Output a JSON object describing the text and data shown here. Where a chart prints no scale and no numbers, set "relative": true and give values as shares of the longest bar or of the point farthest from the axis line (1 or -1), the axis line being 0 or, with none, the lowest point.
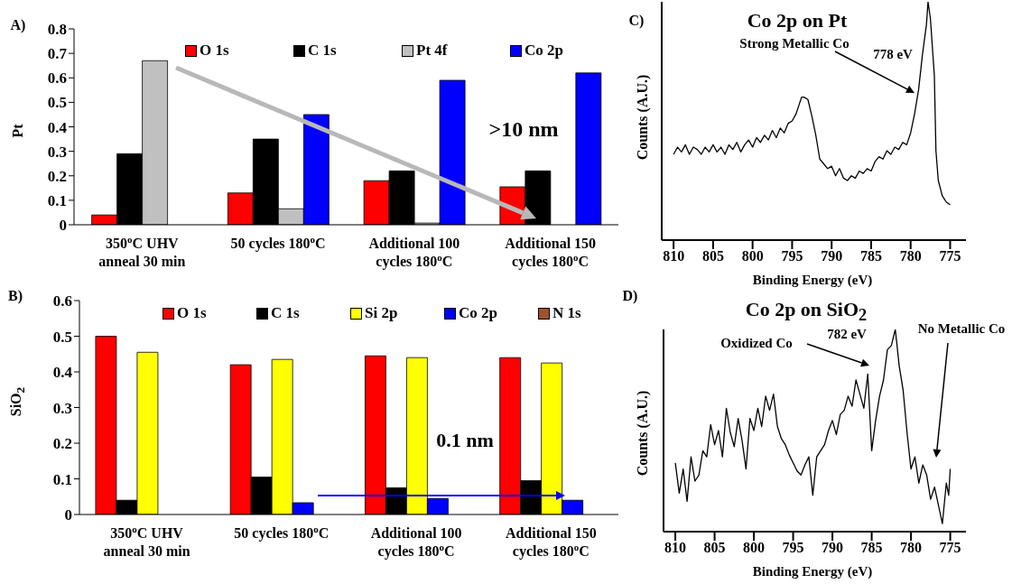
{
  "chart_data": [
    {
      "type": "bar",
      "ylabel": "Pt",
      "categories": [
        "350$^{o}$C UHV anneal 30 min",
        "50 cycles 180$^{o}$C",
        "Additional 100 cycles 180$^{o}$C",
        "Additional 150 cycles 180$^{o}$C"
      ],
      "series": [
        {
          "name": "O 1s",
          "color": "#ff0000",
          "values": [
            0.04,
            0.13,
            0.18,
            0.155
          ]
        },
        {
          "name": "C 1s",
          "color": "#000000",
          "values": [
            0.29,
            0.35,
            0.22,
            0.22
          ]
        },
        {
          "name": "Pt 4f",
          "color": "#c0c0c0",
          "values": [
            0.67,
            0.065,
            0.007,
            0
          ]
        },
        {
          "name": "Co 2p",
          "color": "#0000ff",
          "values": [
            0,
            0.45,
            0.59,
            0.62
          ]
        }
      ],
      "ylim": [
        0,
        0.8
      ],
      "yticks": [
        0,
        0.1,
        0.2,
        0.3,
        0.4,
        0.5,
        0.6,
        0.7,
        0.8
      ],
      "legend": "top",
      "annotations": [
        "A)",
        ">10 nm"
      ]
    },
    {
      "type": "bar",
      "ylabel": "SiO$_{2}$",
      "categories": [
        "350$^{o}$C UHV anneal 30 min",
        "50 cycles 180$^{o}$C",
        "Additional 100 cycles 180$^{o}$C",
        "Additional 150 cycles 180$^{o}$C"
      ],
      "series": [
        {
          "name": "O 1s",
          "color": "#ff0000",
          "values": [
            0.5,
            0.42,
            0.445,
            0.44
          ]
        },
        {
          "name": "C 1s",
          "color": "#000000",
          "values": [
            0.04,
            0.105,
            0.075,
            0.095
          ]
        },
        {
          "name": "Si 2p",
          "color": "#ffff00",
          "values": [
            0.455,
            0.435,
            0.44,
            0.425
          ]
        },
        {
          "name": "Co 2p",
          "color": "#0000ff",
          "values": [
            0,
            0.033,
            0.045,
            0.04
          ]
        },
        {
          "name": "N 1s",
          "color": "#a0522d",
          "values": [
            0,
            0,
            0,
            0
          ]
        }
      ],
      "ylim": [
        0,
        0.6
      ],
      "yticks": [
        0,
        0.1,
        0.2,
        0.3,
        0.4,
        0.5,
        0.6
      ],
      "legend": "top",
      "annotations": [
        "B)",
        "0.1 nm"
      ]
    },
    {
      "type": "line",
      "title": "Co 2p on Pt",
      "xlabel": "Binding Energy (eV)",
      "ylabel": "Counts (A.U.)",
      "relative": true,
      "marker": "none",
      "x": [
        810,
        809.5,
        809,
        808.5,
        808,
        807.5,
        807,
        806.5,
        806,
        805.5,
        805,
        804.5,
        804,
        803.5,
        803,
        802.5,
        802,
        801.5,
        801,
        800.5,
        800,
        799.5,
        799,
        798.5,
        798,
        797.5,
        797,
        796.5,
        796,
        795.5,
        795,
        794.5,
        794,
        793.8,
        793.5,
        793,
        792.5,
        792,
        791.5,
        791,
        790.5,
        790,
        789.5,
        789,
        788.5,
        788,
        787.5,
        787,
        786.5,
        786,
        785.5,
        785,
        784.5,
        784,
        783.5,
        783,
        782.5,
        782,
        781.5,
        781,
        780.5,
        780,
        779.5,
        779,
        778.5,
        778,
        777.8,
        777.5,
        777,
        776.8,
        776.5,
        776,
        775.5,
        775
      ],
      "series": [
        {
          "color": "#000000",
          "values": [
            0.36,
            0.39,
            0.37,
            0.4,
            0.36,
            0.39,
            0.38,
            0.36,
            0.39,
            0.37,
            0.4,
            0.37,
            0.39,
            0.36,
            0.4,
            0.38,
            0.41,
            0.37,
            0.4,
            0.42,
            0.39,
            0.43,
            0.41,
            0.44,
            0.42,
            0.46,
            0.43,
            0.47,
            0.45,
            0.49,
            0.5,
            0.53,
            0.58,
            0.6,
            0.6,
            0.59,
            0.52,
            0.44,
            0.34,
            0.32,
            0.3,
            0.31,
            0.27,
            0.3,
            0.26,
            0.25,
            0.27,
            0.26,
            0.29,
            0.28,
            0.3,
            0.29,
            0.33,
            0.35,
            0.34,
            0.375,
            0.36,
            0.39,
            0.38,
            0.41,
            0.4,
            0.45,
            0.53,
            0.63,
            0.78,
            0.905,
            1,
            0.93,
            0.69,
            0.375,
            0.25,
            0.186,
            0.16,
            0.148
          ]
        }
      ],
      "xlim": [
        811.5,
        773
      ],
      "xticks": [
        810,
        805,
        800,
        795,
        790,
        785,
        780,
        775
      ],
      "annotations": [
        "C)",
        "Strong Metallic Co",
        "778 eV"
      ]
    },
    {
      "type": "line",
      "title": "Co 2p on SiO$_{2}$",
      "xlabel": "Binding Energy (eV)",
      "ylabel": "Counts (A.U.)",
      "relative": true,
      "marker": "none",
      "x": [
        810,
        809.5,
        809,
        808.5,
        808,
        807.5,
        807,
        806.5,
        806,
        805.5,
        805,
        804.5,
        804,
        803.5,
        803,
        802.5,
        802,
        801.5,
        801,
        800.5,
        800,
        799.5,
        799,
        798.5,
        798,
        797.5,
        797,
        796.5,
        796,
        795.5,
        795,
        794.5,
        794,
        793.5,
        793,
        792.5,
        792,
        791.5,
        791,
        790.5,
        790,
        789.5,
        789,
        788.5,
        788,
        787.5,
        787,
        786.5,
        786,
        785.5,
        785,
        784.5,
        784,
        783.5,
        783,
        782.5,
        782,
        781.8,
        781.5,
        781,
        780.5,
        780,
        779.5,
        779,
        778.5,
        778,
        777.5,
        777,
        776.5,
        776,
        775.5,
        775.2,
        775
      ],
      "series": [
        {
          "color": "#000000",
          "values": [
            0.34,
            0.19,
            0.31,
            0.15,
            0.37,
            0.25,
            0.28,
            0.4,
            0.37,
            0.53,
            0.43,
            0.5,
            0.37,
            0.61,
            0.49,
            0.42,
            0.56,
            0.45,
            0.31,
            0.56,
            0.5,
            0.61,
            0.52,
            0.67,
            0.6,
            0.68,
            0.52,
            0.46,
            0.43,
            0.38,
            0.34,
            0.3,
            0.28,
            0.33,
            0.37,
            0.18,
            0.37,
            0.4,
            0.43,
            0.5,
            0.55,
            0.48,
            0.58,
            0.6,
            0.67,
            0.62,
            0.75,
            0.68,
            0.61,
            0.78,
            0.4,
            0.55,
            0.67,
            0.75,
            0.9,
            0.92,
            1,
            0.93,
            0.82,
            0.7,
            0.49,
            0.31,
            0.37,
            0.24,
            0.33,
            0.28,
            0.16,
            0.22,
            0.13,
            0.04,
            0.24,
            0.18,
            0.31
          ]
        }
      ],
      "xlim": [
        811.5,
        773
      ],
      "xticks": [
        810,
        805,
        800,
        795,
        790,
        785,
        780,
        775
      ],
      "annotations": [
        "D)",
        "Oxidized Co",
        "782 eV",
        "No Metallic Co"
      ]
    }
  ]
}
